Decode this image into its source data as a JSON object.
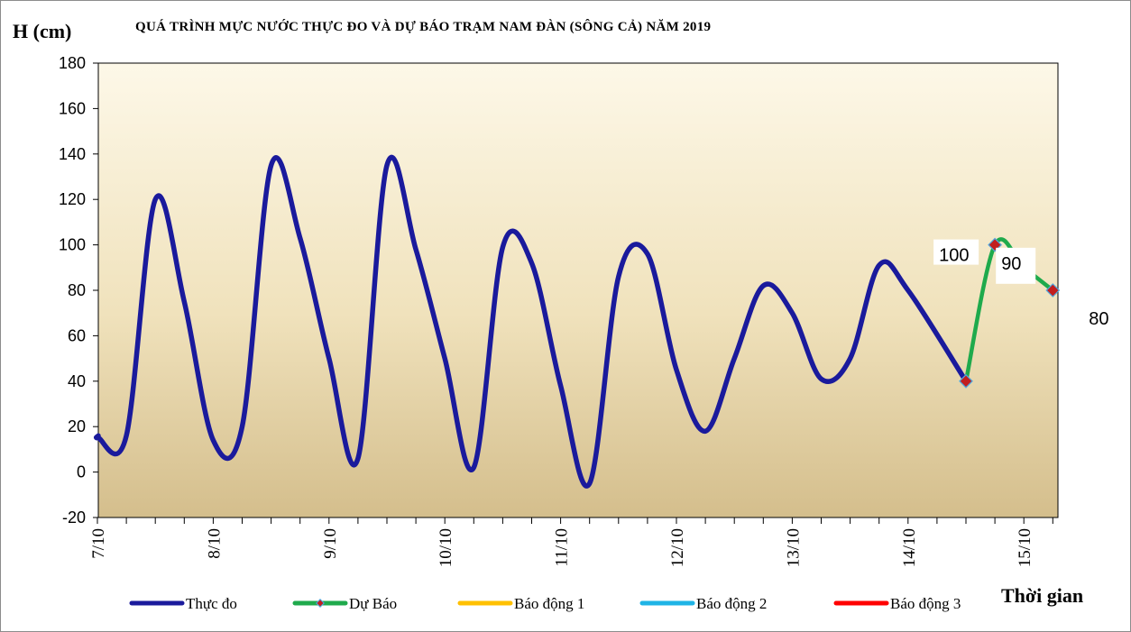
{
  "chart_data": {
    "type": "line",
    "title": "QUÁ TRÌNH  MỰC NƯỚC THỰC ĐO VÀ DỰ BÁO TRẠM   NAM  ĐÀN (SÔNG CẢ) NĂM 2019",
    "ylabel": "H (cm)",
    "xlabel": "Thời gian",
    "ylim": [
      -20,
      180
    ],
    "yticks": [
      -20,
      0,
      20,
      40,
      60,
      80,
      100,
      120,
      140,
      160,
      180
    ],
    "xlim": [
      0,
      8.5
    ],
    "xticks": [
      {
        "x": 0,
        "label": "7/10"
      },
      {
        "x": 1,
        "label": "8/10"
      },
      {
        "x": 2,
        "label": "9/10"
      },
      {
        "x": 3,
        "label": "10/10"
      },
      {
        "x": 4,
        "label": "11/10"
      },
      {
        "x": 5,
        "label": "12/10"
      },
      {
        "x": 6,
        "label": "13/10"
      },
      {
        "x": 7,
        "label": "14/10"
      },
      {
        "x": 8,
        "label": "15/10"
      }
    ],
    "minor_step": 0.25,
    "grid": false,
    "legend_position": "bottom",
    "series": [
      {
        "name": "Thực đo",
        "color": "#1a1a9c",
        "points": [
          [
            -0.25,
            16
          ],
          [
            0,
            15
          ],
          [
            0.25,
            16
          ],
          [
            0.5,
            120
          ],
          [
            0.75,
            75
          ],
          [
            1,
            14
          ],
          [
            1.25,
            20
          ],
          [
            1.5,
            135
          ],
          [
            1.75,
            103
          ],
          [
            2,
            50
          ],
          [
            2.25,
            6
          ],
          [
            2.5,
            135
          ],
          [
            2.75,
            98
          ],
          [
            3,
            50
          ],
          [
            3.25,
            2
          ],
          [
            3.5,
            99
          ],
          [
            3.75,
            92
          ],
          [
            4,
            38
          ],
          [
            4.25,
            -5
          ],
          [
            4.5,
            86
          ],
          [
            4.75,
            96
          ],
          [
            5,
            45
          ],
          [
            5.25,
            18
          ],
          [
            5.5,
            50
          ],
          [
            5.75,
            82
          ],
          [
            6,
            70
          ],
          [
            6.25,
            41
          ],
          [
            6.5,
            50
          ],
          [
            6.75,
            91
          ],
          [
            7,
            80
          ],
          [
            7.5,
            40
          ]
        ]
      },
      {
        "name": "Dự Báo",
        "color": "#1faa4c",
        "points": [
          [
            7.5,
            40
          ],
          [
            7.75,
            100
          ],
          [
            8,
            90
          ],
          [
            8.25,
            80
          ]
        ]
      },
      {
        "name": "Báo động 1",
        "color": "#ffc000",
        "points": []
      },
      {
        "name": "Báo động 2",
        "color": "#1fb4e6",
        "points": []
      },
      {
        "name": "Báo động 3",
        "color": "#ff0000",
        "points": []
      }
    ],
    "data_labels": [
      {
        "text": "100",
        "for": [
          7.75,
          100
        ]
      },
      {
        "text": "90",
        "for": [
          8,
          90
        ]
      },
      {
        "text": "80",
        "for": [
          8.25,
          80
        ]
      }
    ]
  }
}
